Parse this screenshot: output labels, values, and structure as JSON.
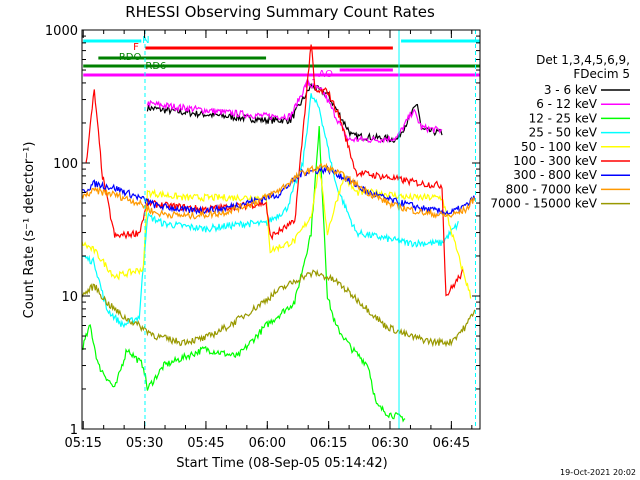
{
  "chart_data": {
    "type": "line",
    "title": "RHESSI Observing Summary Count Rates",
    "xlabel": "Start Time (08-Sep-05 05:14:42)",
    "ylabel": "Count Rate (s⁻¹ detector⁻¹)",
    "yscale": "log",
    "xlim_minutes": [
      0,
      97.3
    ],
    "ylim": [
      1,
      1000
    ],
    "x_ticks": [
      {
        "label": "05:15",
        "t": 0.3
      },
      {
        "label": "05:30",
        "t": 15.3
      },
      {
        "label": "05:45",
        "t": 30.3
      },
      {
        "label": "06:00",
        "t": 45.3
      },
      {
        "label": "06:15",
        "t": 60.3
      },
      {
        "label": "06:30",
        "t": 75.3
      },
      {
        "label": "06:45",
        "t": 90.3
      }
    ],
    "y_ticks": [
      {
        "label": "1",
        "v": 1
      },
      {
        "label": "10",
        "v": 10
      },
      {
        "label": "100",
        "v": 100
      },
      {
        "label": "1000",
        "v": 1000
      }
    ],
    "legend_title": [
      "Det 1,3,4,5,6,9,",
      "FDecim 5"
    ],
    "series": [
      {
        "name": "3 - 6 keV",
        "color": "#000000",
        "points": [
          [
            16,
            260
          ],
          [
            25,
            240
          ],
          [
            35,
            225
          ],
          [
            45,
            210
          ],
          [
            51,
            210
          ],
          [
            56,
            380
          ],
          [
            60,
            330
          ],
          [
            66,
            160
          ],
          [
            72,
            155
          ],
          [
            77,
            150
          ],
          [
            82,
            280
          ],
          [
            83,
            178
          ],
          [
            88,
            168
          ]
        ]
      },
      {
        "name": "6 - 12 keV",
        "color": "#ff00ff",
        "points": [
          [
            16,
            280
          ],
          [
            25,
            260
          ],
          [
            35,
            240
          ],
          [
            45,
            225
          ],
          [
            51,
            225
          ],
          [
            55,
            400
          ],
          [
            59,
            340
          ],
          [
            65,
            150
          ],
          [
            72,
            150
          ],
          [
            77,
            155
          ],
          [
            81,
            250
          ],
          [
            83,
            185
          ],
          [
            88,
            175
          ]
        ]
      },
      {
        "name": "12 - 25 keV",
        "color": "#00ff00",
        "points": [
          [
            0,
            4
          ],
          [
            2,
            6
          ],
          [
            4,
            3
          ],
          [
            8,
            2
          ],
          [
            11,
            4
          ],
          [
            15,
            3
          ],
          [
            16,
            2
          ],
          [
            20,
            3
          ],
          [
            30,
            4
          ],
          [
            38,
            3.5
          ],
          [
            45,
            6
          ],
          [
            52,
            9
          ],
          [
            56,
            30
          ],
          [
            58,
            180
          ],
          [
            60,
            10
          ],
          [
            62,
            6
          ],
          [
            66,
            4
          ],
          [
            70,
            3
          ],
          [
            72,
            1.5
          ],
          [
            75,
            1.3
          ],
          [
            79,
            1.2
          ]
        ]
      },
      {
        "name": "25 - 50 keV",
        "color": "#00ffff",
        "points": [
          [
            0,
            20
          ],
          [
            3,
            18
          ],
          [
            6,
            8
          ],
          [
            10,
            6
          ],
          [
            14,
            7
          ],
          [
            16,
            40
          ],
          [
            20,
            35
          ],
          [
            30,
            32
          ],
          [
            40,
            35
          ],
          [
            45,
            35
          ],
          [
            46,
            37
          ],
          [
            50,
            45
          ],
          [
            54,
            100
          ],
          [
            56,
            320
          ],
          [
            58,
            260
          ],
          [
            62,
            70
          ],
          [
            67,
            30
          ],
          [
            72,
            28
          ],
          [
            80,
            25
          ],
          [
            88,
            25
          ],
          [
            92,
            35
          ]
        ]
      },
      {
        "name": "50 - 100 keV",
        "color": "#ffff00",
        "points": [
          [
            0,
            25
          ],
          [
            3,
            22
          ],
          [
            8,
            14
          ],
          [
            15,
            16
          ],
          [
            16,
            60
          ],
          [
            25,
            55
          ],
          [
            35,
            55
          ],
          [
            45,
            55
          ],
          [
            46,
            22
          ],
          [
            52,
            26
          ],
          [
            56,
            40
          ],
          [
            58,
            95
          ],
          [
            60,
            30
          ],
          [
            64,
            80
          ],
          [
            67,
            60
          ],
          [
            72,
            60
          ],
          [
            80,
            55
          ],
          [
            88,
            55
          ],
          [
            92,
            20
          ],
          [
            95,
            10
          ]
        ]
      },
      {
        "name": "100 - 300 keV",
        "color": "#ff0000",
        "points": [
          [
            1,
            100
          ],
          [
            3,
            350
          ],
          [
            5,
            80
          ],
          [
            8,
            28
          ],
          [
            14,
            30
          ],
          [
            16,
            50
          ],
          [
            20,
            48
          ],
          [
            30,
            45
          ],
          [
            40,
            48
          ],
          [
            45,
            50
          ],
          [
            46,
            28
          ],
          [
            52,
            36
          ],
          [
            56,
            800
          ],
          [
            57,
            340
          ],
          [
            60,
            350
          ],
          [
            63,
            220
          ],
          [
            67,
            85
          ],
          [
            75,
            78
          ],
          [
            83,
            70
          ],
          [
            88,
            68
          ],
          [
            89,
            10
          ],
          [
            93,
            15
          ]
        ]
      },
      {
        "name": "300 - 800 keV",
        "color": "#0000ff",
        "points": [
          [
            0,
            60
          ],
          [
            3,
            70
          ],
          [
            8,
            65
          ],
          [
            14,
            55
          ],
          [
            18,
            48
          ],
          [
            26,
            44
          ],
          [
            34,
            45
          ],
          [
            42,
            52
          ],
          [
            48,
            58
          ],
          [
            54,
            85
          ],
          [
            60,
            90
          ],
          [
            64,
            78
          ],
          [
            70,
            60
          ],
          [
            76,
            52
          ],
          [
            84,
            45
          ],
          [
            90,
            42
          ],
          [
            94,
            48
          ],
          [
            96,
            55
          ]
        ]
      },
      {
        "name": "800 - 7000 keV",
        "color": "#ff9900",
        "points": [
          [
            0,
            55
          ],
          [
            3,
            62
          ],
          [
            8,
            58
          ],
          [
            14,
            50
          ],
          [
            18,
            42
          ],
          [
            26,
            40
          ],
          [
            34,
            42
          ],
          [
            42,
            50
          ],
          [
            48,
            62
          ],
          [
            54,
            85
          ],
          [
            59,
            95
          ],
          [
            64,
            80
          ],
          [
            70,
            60
          ],
          [
            76,
            48
          ],
          [
            84,
            42
          ],
          [
            90,
            40
          ],
          [
            94,
            45
          ],
          [
            96,
            55
          ]
        ]
      },
      {
        "name": "7000 - 15000 keV",
        "color": "#999900",
        "points": [
          [
            0,
            10
          ],
          [
            3,
            12
          ],
          [
            6,
            9
          ],
          [
            10,
            7
          ],
          [
            14,
            6
          ],
          [
            18,
            5
          ],
          [
            24,
            4.5
          ],
          [
            30,
            4.8
          ],
          [
            36,
            6
          ],
          [
            42,
            8
          ],
          [
            48,
            11
          ],
          [
            54,
            14
          ],
          [
            57,
            15
          ],
          [
            62,
            13
          ],
          [
            68,
            9
          ],
          [
            74,
            6
          ],
          [
            80,
            5
          ],
          [
            86,
            4.5
          ],
          [
            90,
            4.5
          ],
          [
            94,
            6
          ],
          [
            96,
            8
          ]
        ]
      }
    ],
    "annotations": [
      {
        "label": "N",
        "color": "#00ffff"
      },
      {
        "label": "RDO",
        "color": "#008000"
      },
      {
        "label": "F",
        "color": "#ff0000"
      },
      {
        "label": "RD6",
        "color": "#008000"
      },
      {
        "label": "A1",
        "color": "#ff00ff"
      },
      {
        "label": "AO",
        "color": "#ff00ff"
      }
    ],
    "date_stamp": "19-Oct-2021 20:02"
  }
}
